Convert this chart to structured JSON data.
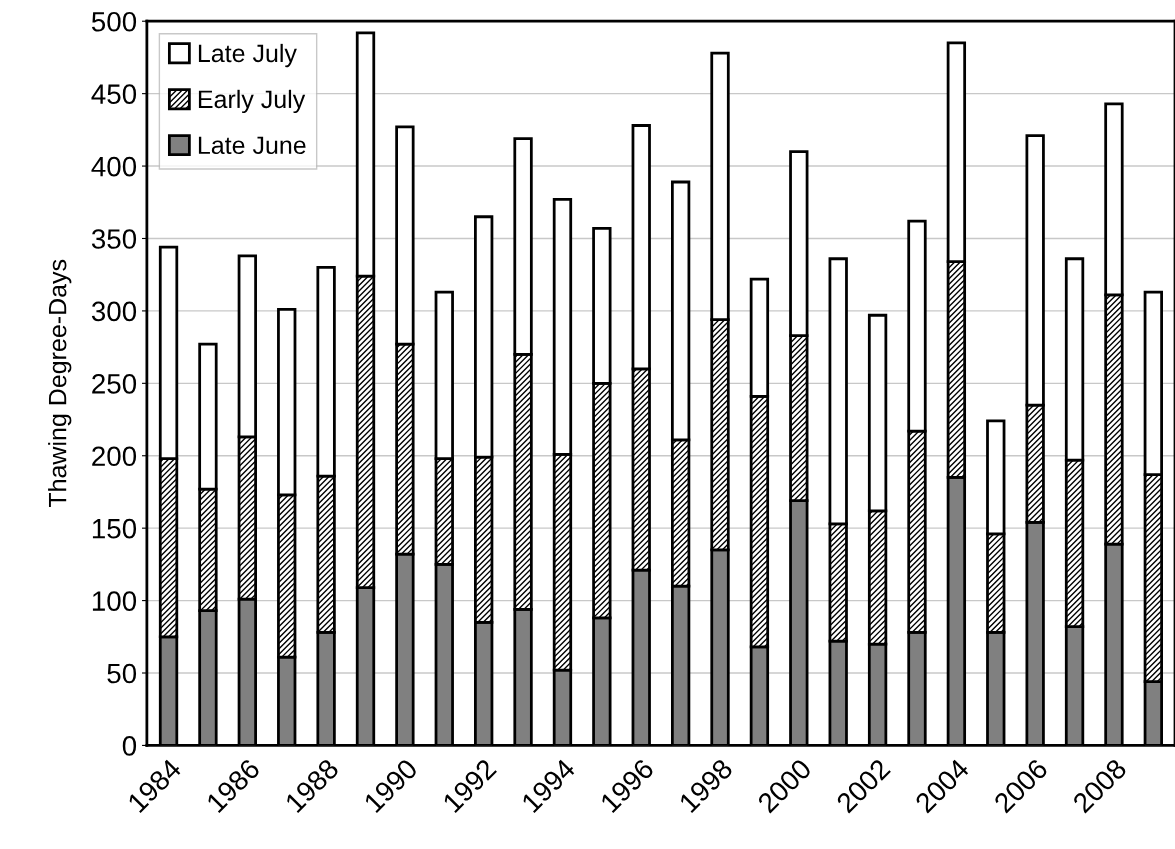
{
  "chart_data": {
    "type": "bar",
    "stacked": true,
    "ylabel": "Thawing Degree-Days",
    "categories": [
      "1984",
      null,
      "1986",
      null,
      "1988",
      null,
      "1990",
      null,
      "1992",
      null,
      "1994",
      null,
      "1996",
      null,
      "1998",
      null,
      "2000",
      null,
      "2002",
      null,
      "2004",
      null,
      "2006",
      null,
      "2008",
      null
    ],
    "series": [
      {
        "name": "Late June",
        "color": "#808080",
        "values": [
          75,
          93,
          101,
          61,
          78,
          109,
          132,
          125,
          85,
          94,
          52,
          88,
          121,
          110,
          135,
          68,
          169,
          72,
          70,
          78,
          185,
          78,
          154,
          82,
          139,
          44
        ]
      },
      {
        "name": "Early July",
        "color": "#000000",
        "values": [
          123,
          84,
          112,
          112,
          108,
          215,
          145,
          73,
          114,
          176,
          149,
          162,
          139,
          101,
          159,
          173,
          114,
          81,
          92,
          139,
          149,
          68,
          81,
          115,
          172,
          143
        ]
      },
      {
        "name": "Late July",
        "color": "#ffffff",
        "values": [
          146,
          100,
          125,
          128,
          144,
          168,
          150,
          115,
          166,
          149,
          176,
          107,
          168,
          178,
          184,
          81,
          127,
          183,
          135,
          145,
          151,
          78,
          186,
          139,
          132,
          126
        ]
      }
    ],
    "ylim": [
      0,
      500
    ],
    "yticks": [
      0,
      50,
      100,
      150,
      200,
      250,
      300,
      350,
      400,
      450,
      500
    ],
    "grid": "y",
    "legend": "top left"
  }
}
